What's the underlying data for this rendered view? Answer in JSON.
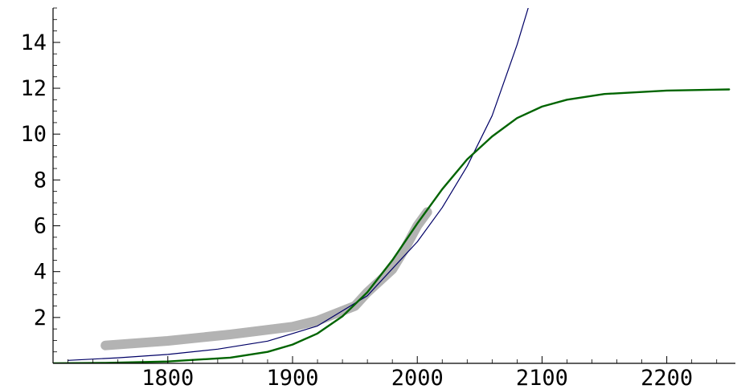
{
  "chart_data": {
    "type": "line",
    "title": "",
    "xlabel": "",
    "ylabel": "",
    "xlim": [
      1708,
      2255
    ],
    "ylim": [
      0,
      15.5
    ],
    "x_ticks": [
      1800,
      1900,
      2000,
      2100,
      2200
    ],
    "y_ticks": [
      2,
      4,
      6,
      8,
      10,
      12,
      14
    ],
    "x_tick_labels": [
      "1800",
      "1900",
      "2000",
      "2100",
      "2200"
    ],
    "y_tick_labels": [
      "2",
      "4",
      "6",
      "8",
      "10",
      "12",
      "14"
    ],
    "grid": false,
    "legend": "none",
    "series": [
      {
        "color": "#b3b3b3",
        "x": [
          1750,
          1800,
          1850,
          1900,
          1920,
          1950,
          1960,
          1980,
          1990,
          2000,
          2008
        ],
        "y": [
          0.78,
          0.98,
          1.26,
          1.6,
          1.86,
          2.5,
          3.1,
          4.1,
          5.0,
          6.0,
          6.6
        ]
      },
      {
        "color": "#000066",
        "x": [
          1720,
          1760,
          1800,
          1840,
          1880,
          1920,
          1960,
          2000,
          2020,
          2040,
          2060,
          2080,
          2090
        ],
        "y": [
          0.13,
          0.24,
          0.39,
          0.62,
          0.97,
          1.63,
          2.95,
          5.3,
          6.8,
          8.6,
          10.8,
          13.9,
          15.7
        ]
      },
      {
        "color": "#006400",
        "x": [
          1708,
          1750,
          1800,
          1850,
          1880,
          1900,
          1920,
          1940,
          1960,
          1980,
          2000,
          2020,
          2040,
          2060,
          2080,
          2100,
          2120,
          2150,
          2200,
          2250
        ],
        "y": [
          0.0,
          0.02,
          0.08,
          0.25,
          0.5,
          0.82,
          1.3,
          2.05,
          3.1,
          4.5,
          6.1,
          7.6,
          8.9,
          9.9,
          10.7,
          11.2,
          11.5,
          11.75,
          11.9,
          11.95
        ]
      }
    ]
  }
}
